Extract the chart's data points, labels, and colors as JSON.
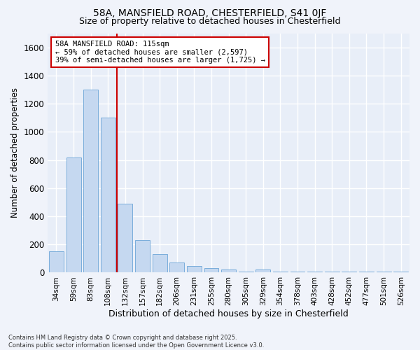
{
  "title1": "58A, MANSFIELD ROAD, CHESTERFIELD, S41 0JF",
  "title2": "Size of property relative to detached houses in Chesterfield",
  "xlabel": "Distribution of detached houses by size in Chesterfield",
  "ylabel": "Number of detached properties",
  "categories": [
    "34sqm",
    "59sqm",
    "83sqm",
    "108sqm",
    "132sqm",
    "157sqm",
    "182sqm",
    "206sqm",
    "231sqm",
    "255sqm",
    "280sqm",
    "305sqm",
    "329sqm",
    "354sqm",
    "378sqm",
    "403sqm",
    "428sqm",
    "452sqm",
    "477sqm",
    "501sqm",
    "526sqm"
  ],
  "values": [
    150,
    820,
    1300,
    1100,
    490,
    230,
    130,
    70,
    45,
    30,
    20,
    5,
    20,
    5,
    5,
    5,
    5,
    5,
    5,
    5,
    5
  ],
  "bar_color": "#c5d8f0",
  "bar_edge_color": "#7aaddb",
  "bg_color": "#f0f3fa",
  "plot_bg_color": "#e8eef8",
  "grid_color": "#ffffff",
  "vline_color": "#cc0000",
  "vline_x": 3.5,
  "annotation_text": "58A MANSFIELD ROAD: 115sqm\n← 59% of detached houses are smaller (2,597)\n39% of semi-detached houses are larger (1,725) →",
  "annotation_box_color": "#ffffff",
  "annotation_box_edge": "#cc0000",
  "footer": "Contains HM Land Registry data © Crown copyright and database right 2025.\nContains public sector information licensed under the Open Government Licence v3.0.",
  "ylim": [
    0,
    1700
  ],
  "yticks": [
    0,
    200,
    400,
    600,
    800,
    1000,
    1200,
    1400,
    1600
  ]
}
